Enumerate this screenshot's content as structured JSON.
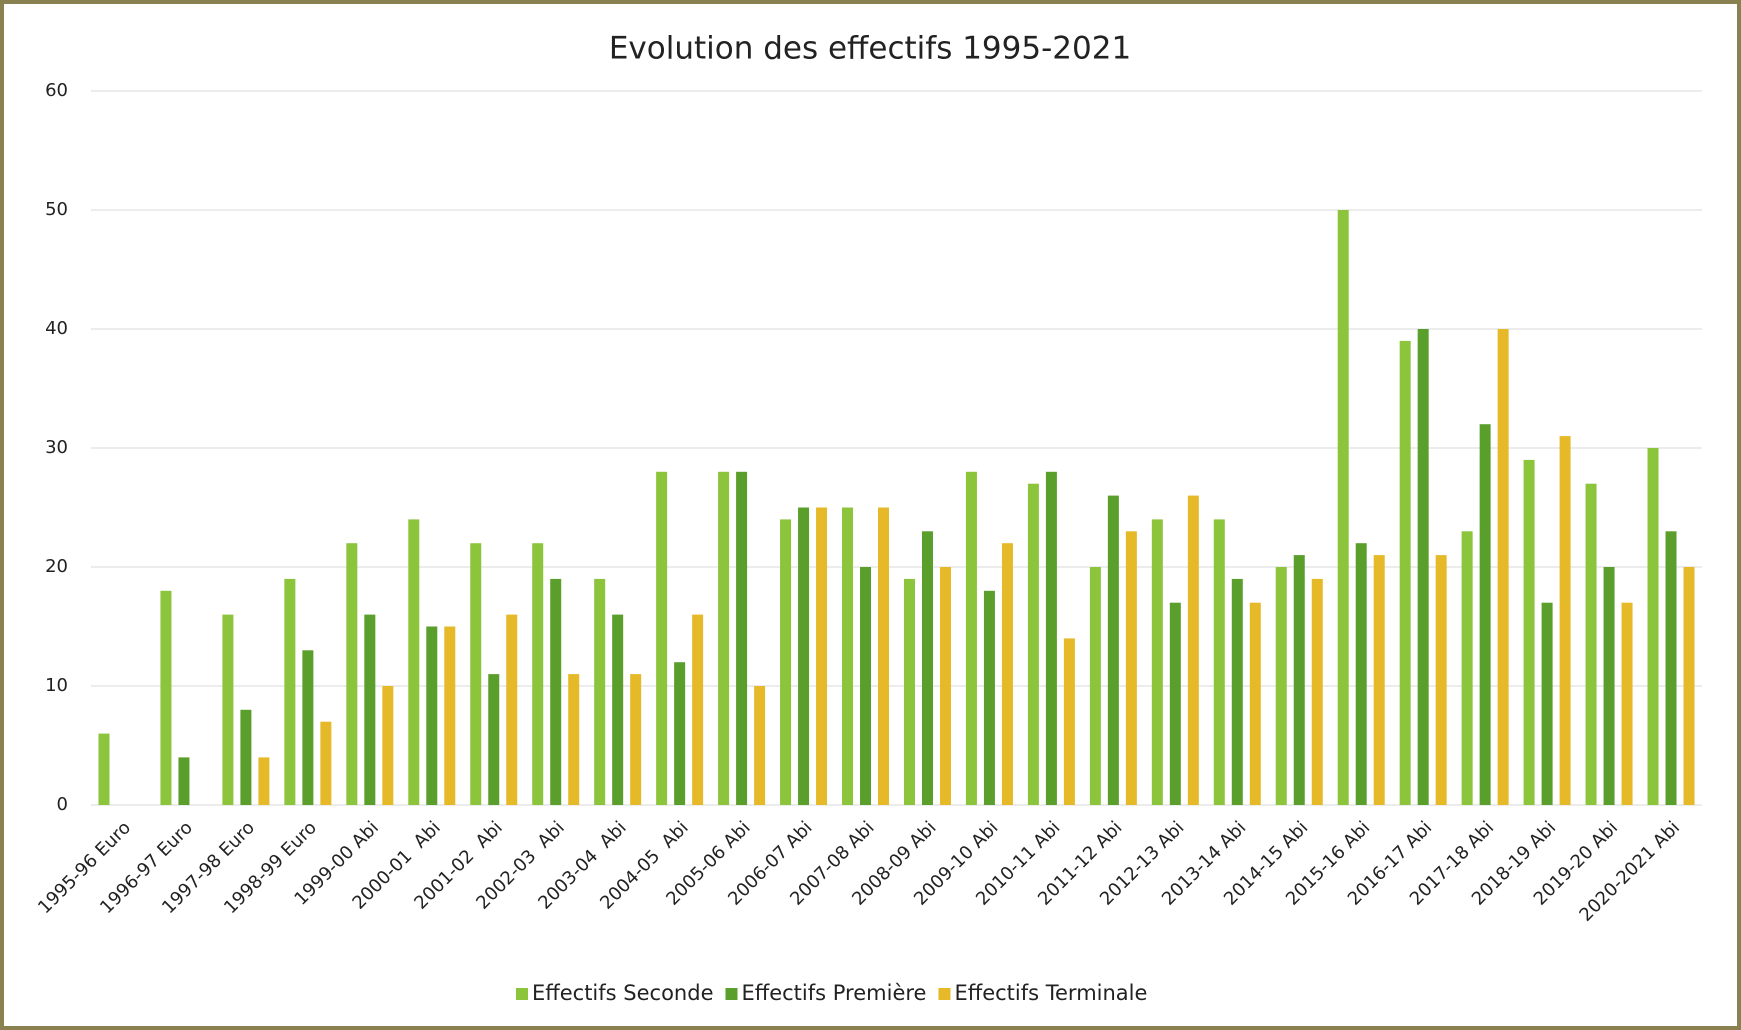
{
  "chart_data": {
    "type": "bar",
    "title": "Evolution des effectifs 1995-2021",
    "categories": [
      "1995-96 Euro",
      "1996-97 Euro",
      "1997-98 Euro",
      "1998-99 Euro",
      "1999-00 Abi",
      "2000-01  Abi",
      "2001-02  Abi",
      "2002-03  Abi",
      "2003-04  Abi",
      "2004-05  Abi",
      "2005-06 Abi",
      "2006-07 Abi",
      "2007-08 Abi",
      "2008-09 Abi",
      "2009-10 Abi",
      "2010-11 Abi",
      "2011-12 Abi",
      "2012-13 Abi",
      "2013-14 Abi",
      "2014-15 Abi",
      "2015-16 Abi",
      "2016-17 Abi",
      "2017-18 Abi",
      "2018-19 Abi",
      "2019-20 Abi",
      "2020-2021 Abi"
    ],
    "series": [
      {
        "name": "Effectifs Seconde",
        "color": "#8cc43c",
        "values": [
          6,
          18,
          16,
          19,
          22,
          24,
          22,
          22,
          19,
          28,
          28,
          24,
          25,
          19,
          28,
          27,
          20,
          24,
          24,
          20,
          50,
          39,
          23,
          29,
          27,
          30
        ]
      },
      {
        "name": "Effectifs Première",
        "color": "#5a9e2c",
        "values": [
          null,
          4,
          8,
          13,
          16,
          15,
          11,
          19,
          16,
          12,
          28,
          25,
          20,
          23,
          18,
          28,
          26,
          17,
          19,
          21,
          22,
          40,
          32,
          17,
          20,
          23
        ]
      },
      {
        "name": "Effectifs Terminale",
        "color": "#e6b928",
        "values": [
          null,
          null,
          4,
          7,
          10,
          15,
          16,
          11,
          11,
          16,
          10,
          25,
          25,
          20,
          22,
          14,
          23,
          26,
          17,
          19,
          21,
          21,
          40,
          31,
          17,
          20
        ]
      }
    ],
    "ylim": [
      0,
      60
    ],
    "yticks": [
      0,
      10,
      20,
      30,
      40,
      50,
      60
    ],
    "grid": true,
    "legend": "bottom"
  }
}
